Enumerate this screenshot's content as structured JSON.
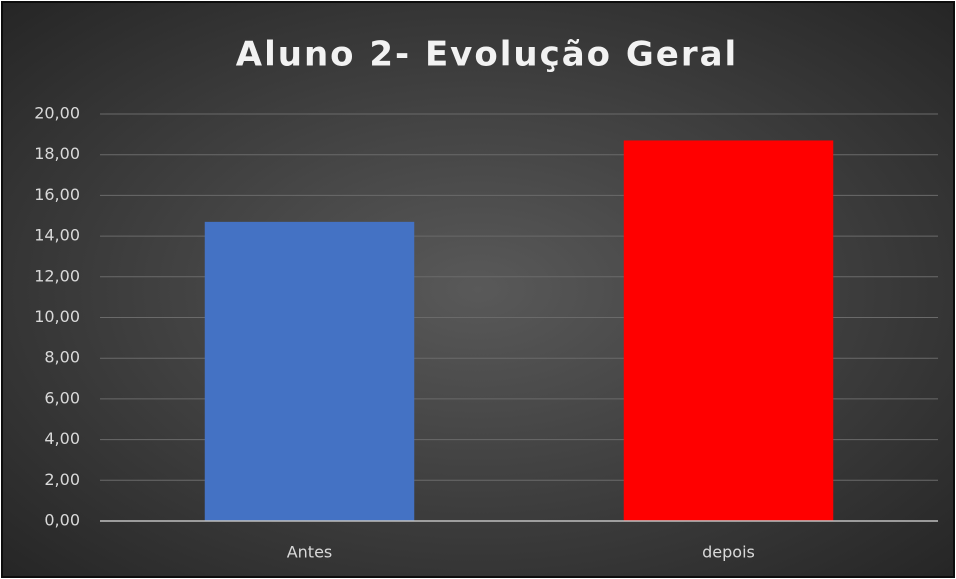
{
  "chart_data": {
    "type": "bar",
    "title": "Aluno 2- Evolução Geral",
    "categories": [
      "Antes",
      "depois"
    ],
    "values": [
      14.7,
      18.7
    ],
    "colors": [
      "#4472c4",
      "#ff0000"
    ],
    "ylim": [
      0,
      20
    ],
    "yticks": [
      {
        "value": 0,
        "label": "0,00"
      },
      {
        "value": 2,
        "label": "2,00"
      },
      {
        "value": 4,
        "label": "4,00"
      },
      {
        "value": 6,
        "label": "6,00"
      },
      {
        "value": 8,
        "label": "8,00"
      },
      {
        "value": 10,
        "label": "10,00"
      },
      {
        "value": 12,
        "label": "12,00"
      },
      {
        "value": 14,
        "label": "14,00"
      },
      {
        "value": 16,
        "label": "16,00"
      },
      {
        "value": 18,
        "label": "18,00"
      },
      {
        "value": 20,
        "label": "20,00"
      }
    ],
    "grid": true
  }
}
